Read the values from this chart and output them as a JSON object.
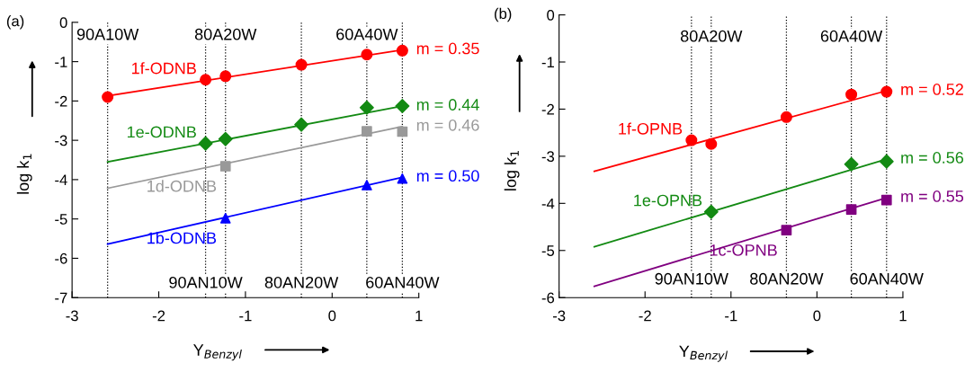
{
  "chart_data": [
    {
      "type": "scatter",
      "title": "(a)",
      "xlabel": "Y$_{Benzyl}$",
      "ylabel": "log k$_{1}$",
      "xlim": [
        -3,
        1
      ],
      "ylim": [
        -7,
        0
      ],
      "xticks": [
        -3,
        -2,
        -1,
        0,
        1
      ],
      "yticks": [
        -7,
        -6,
        -5,
        -4,
        -3,
        -2,
        -1,
        0
      ],
      "grid": false,
      "legend": false,
      "series": [
        {
          "name": "1f-ODNB",
          "color": "#ff0000",
          "marker": "circle",
          "x": [
            -2.59,
            -1.46,
            -1.23,
            -0.355,
            0.4,
            0.81
          ],
          "values": [
            -1.9,
            -1.46,
            -1.37,
            -1.08,
            -0.82,
            -0.72
          ]
        },
        {
          "type": "line",
          "color": "#ff0000",
          "x": [
            -2.59,
            0.81
          ],
          "values": [
            -1.87,
            -0.7
          ]
        },
        {
          "name": "1e-ODNB",
          "color": "#138a13",
          "marker": "diamond",
          "x": [
            -1.46,
            -1.23,
            -0.355,
            0.4,
            0.81
          ],
          "values": [
            -3.08,
            -2.97,
            -2.6,
            -2.17,
            -2.13
          ]
        },
        {
          "type": "line",
          "color": "#138a13",
          "x": [
            -2.59,
            0.81
          ],
          "values": [
            -3.55,
            -2.13
          ]
        },
        {
          "name": "1d-ODNB",
          "color": "#999999",
          "marker": "square",
          "x": [
            -1.23,
            0.4,
            0.81
          ],
          "values": [
            -3.66,
            -2.77,
            -2.78
          ]
        },
        {
          "type": "line",
          "color": "#999999",
          "x": [
            -2.59,
            0.81
          ],
          "values": [
            -4.22,
            -2.65
          ]
        },
        {
          "name": "1b-ODNB",
          "color": "#0000ff",
          "marker": "triangle",
          "x": [
            -1.23,
            0.4,
            0.81
          ],
          "values": [
            -4.98,
            -4.14,
            -3.97
          ]
        },
        {
          "type": "line",
          "color": "#0000ff",
          "x": [
            -2.59,
            0.81
          ],
          "values": [
            -5.64,
            -3.94
          ]
        }
      ],
      "ref_lines": [
        {
          "axis": "x",
          "value": -2.59,
          "color": "#000000",
          "line_style": "dotted"
        },
        {
          "axis": "x",
          "value": -1.46,
          "color": "#000000",
          "line_style": "dotted"
        },
        {
          "axis": "x",
          "value": -1.23,
          "color": "#000000",
          "line_style": "dotted"
        },
        {
          "axis": "x",
          "value": -0.355,
          "color": "#000000",
          "line_style": "dotted"
        },
        {
          "axis": "x",
          "value": 0.4,
          "color": "#000000",
          "line_style": "dotted"
        },
        {
          "axis": "x",
          "value": 0.81,
          "color": "#000000",
          "line_style": "dotted"
        }
      ],
      "annotations": [
        {
          "text": "90A10W",
          "x": -2.59,
          "y": -0.34
        },
        {
          "text": "90AN10W",
          "x": -1.46,
          "y": -6.65
        },
        {
          "text": "80A20W",
          "x": -1.23,
          "y": -0.34
        },
        {
          "text": "80AN20W",
          "x": -0.355,
          "y": -6.65
        },
        {
          "text": "60A40W",
          "x": 0.4,
          "y": -0.34
        },
        {
          "text": "60AN40W",
          "x": 0.81,
          "y": -6.65
        },
        {
          "text": "m = 0.35",
          "x": 0.81,
          "y": -0.7
        },
        {
          "text": "m = 0.44",
          "x": 0.81,
          "y": -2.13
        },
        {
          "text": "m = 0.46",
          "x": 0.81,
          "y": -2.65
        },
        {
          "text": "m = 0.50",
          "x": 0.81,
          "y": -3.94
        }
      ]
    },
    {
      "type": "scatter",
      "title": "(b)",
      "xlabel": "Y$_{Benzyl}$",
      "ylabel": "log k$_{1}$",
      "xlim": [
        -3,
        1
      ],
      "ylim": [
        -6,
        0
      ],
      "xticks": [
        -3,
        -2,
        -1,
        0,
        1
      ],
      "yticks": [
        -6,
        -5,
        -4,
        -3,
        -2,
        -1,
        0
      ],
      "grid": false,
      "legend": false,
      "series": [
        {
          "name": "1f-OPNB",
          "color": "#ff0000",
          "marker": "circle",
          "x": [
            -1.46,
            -1.23,
            -0.355,
            0.4,
            0.81
          ],
          "values": [
            -2.66,
            -2.74,
            -2.17,
            -1.69,
            -1.63
          ]
        },
        {
          "type": "line",
          "color": "#ff0000",
          "x": [
            -2.59,
            0.81
          ],
          "values": [
            -3.32,
            -1.61
          ]
        },
        {
          "name": "1e-OPNB",
          "color": "#138a13",
          "marker": "diamond",
          "x": [
            -1.23,
            0.4,
            0.81
          ],
          "values": [
            -4.18,
            -3.17,
            -3.11
          ]
        },
        {
          "type": "line",
          "color": "#138a13",
          "x": [
            -2.59,
            0.81
          ],
          "values": [
            -4.92,
            -3.06
          ]
        },
        {
          "name": "1c-OPNB",
          "color": "#800080",
          "marker": "square",
          "x": [
            -0.355,
            0.4,
            0.81
          ],
          "values": [
            -4.57,
            -4.13,
            -3.93
          ]
        },
        {
          "type": "line",
          "color": "#800080",
          "x": [
            -2.59,
            0.81
          ],
          "values": [
            -5.76,
            -3.88
          ]
        }
      ],
      "ref_lines": [
        {
          "axis": "x",
          "value": -1.46,
          "color": "#000000",
          "line_style": "dotted"
        },
        {
          "axis": "x",
          "value": -1.23,
          "color": "#000000",
          "line_style": "dotted"
        },
        {
          "axis": "x",
          "value": -0.355,
          "color": "#000000",
          "line_style": "dotted"
        },
        {
          "axis": "x",
          "value": 0.4,
          "color": "#000000",
          "line_style": "dotted"
        },
        {
          "axis": "x",
          "value": 0.81,
          "color": "#000000",
          "line_style": "dotted"
        }
      ],
      "annotations": [
        {
          "text": "90AN10W",
          "x": -1.46,
          "y": -5.63
        },
        {
          "text": "80A20W",
          "x": -1.23,
          "y": -0.48
        },
        {
          "text": "80AN20W",
          "x": -0.355,
          "y": -5.63
        },
        {
          "text": "60A40W",
          "x": 0.4,
          "y": -0.48
        },
        {
          "text": "60AN40W",
          "x": 0.81,
          "y": -5.63
        },
        {
          "text": "m = 0.52",
          "x": 0.81,
          "y": -1.61
        },
        {
          "text": "m = 0.56",
          "x": 0.81,
          "y": -3.06
        },
        {
          "text": "m = 0.55",
          "x": 0.81,
          "y": -3.88
        }
      ]
    }
  ]
}
